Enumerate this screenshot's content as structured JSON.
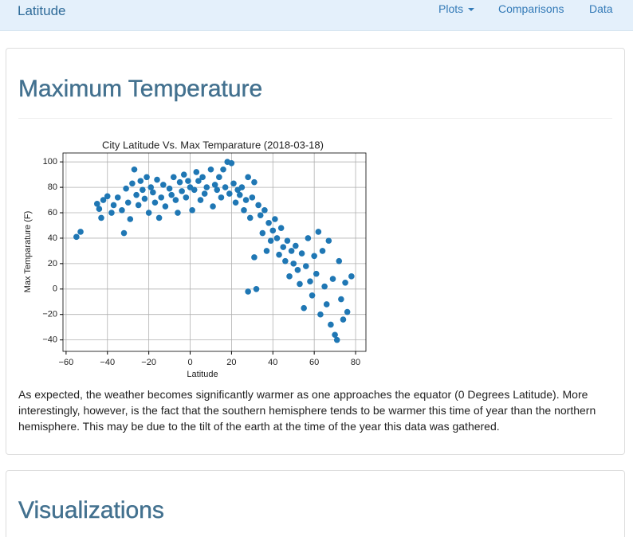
{
  "nav": {
    "brand": "Latitude",
    "items": [
      "Plots",
      "Comparisons",
      "Data"
    ]
  },
  "sections": [
    {
      "heading": "Maximum Temperature",
      "text": "As expected, the weather becomes significantly warmer as one approaches the equator (0 Degrees Latitude). More interestingly, however, is the fact that the southern hemisphere tends to be warmer this time of year than the northern hemisphere. This may be due to the tilt of the earth at the time of the year this data was gathered."
    },
    {
      "heading": "Visualizations"
    }
  ],
  "chart_data": {
    "type": "scatter",
    "title": "City Latitude Vs. Max Temparature (2018-03-18)",
    "x_label": "Latitude",
    "y_label": "Max Temparature (F)",
    "color": "#1f77b4",
    "grid": true,
    "xlim": [
      -61.5,
      85
    ],
    "ylim": [
      -49,
      107
    ],
    "xticks": [
      {
        "value": -60,
        "label": "−60"
      },
      {
        "value": -40,
        "label": "−40"
      },
      {
        "value": -20,
        "label": "−20"
      },
      0,
      20,
      40,
      60,
      80
    ],
    "yticks": [
      {
        "value": -40,
        "label": "−40"
      },
      {
        "value": -20,
        "label": "−20"
      },
      0,
      20,
      40,
      60,
      80,
      100
    ],
    "x": [
      -55,
      -53,
      -45,
      -44,
      -43,
      -42,
      -40,
      -38,
      -37,
      -35,
      -33,
      -32,
      -31,
      -30,
      -29,
      -28,
      -27,
      -26,
      -25,
      -24,
      -23,
      -22,
      -21,
      -20,
      -19,
      -18,
      -17,
      -16,
      -15,
      -14,
      -13,
      -12,
      -10,
      -9,
      -8,
      -7,
      -6,
      -5,
      -4,
      -3,
      -2,
      -1,
      0,
      1,
      2,
      3,
      4,
      5,
      6,
      7,
      8,
      10,
      11,
      12,
      13,
      14,
      15,
      16,
      17,
      18,
      19,
      20,
      21,
      22,
      23,
      24,
      25,
      26,
      27,
      28,
      28,
      29,
      30,
      31,
      31,
      32,
      33,
      34,
      35,
      36,
      37,
      38,
      39,
      40,
      41,
      42,
      43,
      44,
      45,
      46,
      47,
      48,
      49,
      50,
      51,
      52,
      53,
      54,
      55,
      56,
      57,
      58,
      59,
      60,
      61,
      62,
      63,
      64,
      65,
      66,
      67,
      68,
      69,
      70,
      71,
      72,
      73,
      74,
      75,
      76,
      78
    ],
    "y": [
      41,
      45,
      67,
      63,
      56,
      70,
      73,
      60,
      66,
      72,
      62,
      44,
      79,
      68,
      55,
      83,
      94,
      74,
      66,
      85,
      78,
      71,
      88,
      60,
      80,
      76,
      68,
      86,
      56,
      72,
      82,
      65,
      79,
      74,
      88,
      70,
      60,
      84,
      77,
      90,
      72,
      85,
      80,
      62,
      78,
      92,
      85,
      70,
      88,
      75,
      80,
      94,
      65,
      82,
      78,
      88,
      72,
      94,
      80,
      100,
      75,
      99,
      83,
      68,
      78,
      74,
      80,
      62,
      70,
      88,
      -2,
      56,
      72,
      84,
      25,
      0,
      66,
      58,
      44,
      62,
      30,
      52,
      38,
      46,
      55,
      40,
      27,
      48,
      33,
      22,
      38,
      10,
      30,
      20,
      34,
      15,
      4,
      28,
      -15,
      18,
      40,
      6,
      -5,
      26,
      12,
      45,
      -20,
      30,
      2,
      -12,
      38,
      -28,
      8,
      -36,
      -40,
      22,
      -8,
      -24,
      5,
      -18,
      10
    ]
  }
}
